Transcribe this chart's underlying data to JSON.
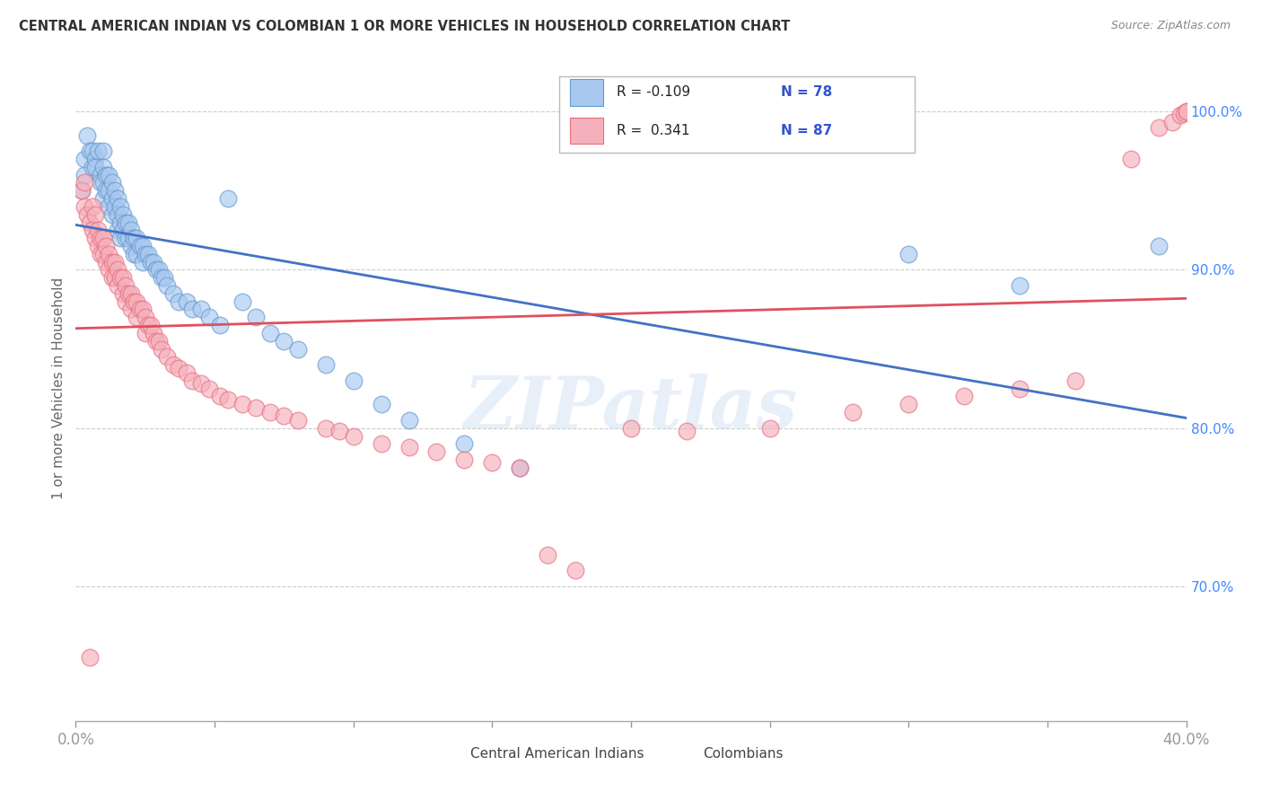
{
  "title": "CENTRAL AMERICAN INDIAN VS COLOMBIAN 1 OR MORE VEHICLES IN HOUSEHOLD CORRELATION CHART",
  "source": "Source: ZipAtlas.com",
  "ylabel": "1 or more Vehicles in Household",
  "ytick_labels": [
    "70.0%",
    "80.0%",
    "90.0%",
    "100.0%"
  ],
  "ytick_values": [
    0.7,
    0.8,
    0.9,
    1.0
  ],
  "xmin": 0.0,
  "xmax": 0.4,
  "ymin": 0.615,
  "ymax": 1.035,
  "watermark": "ZIPatlas",
  "legend_blue_label": "Central American Indians",
  "legend_pink_label": "Colombians",
  "blue_R": "-0.109",
  "blue_N": "78",
  "pink_R": "0.341",
  "pink_N": "87",
  "blue_fill": "#A8C8F0",
  "pink_fill": "#F5B0BB",
  "blue_edge": "#6699CC",
  "pink_edge": "#E87080",
  "blue_line": "#4472C4",
  "pink_line": "#E05060",
  "blue_x": [
    0.002,
    0.003,
    0.003,
    0.004,
    0.005,
    0.006,
    0.006,
    0.007,
    0.007,
    0.008,
    0.009,
    0.009,
    0.01,
    0.01,
    0.01,
    0.01,
    0.011,
    0.011,
    0.012,
    0.012,
    0.012,
    0.013,
    0.013,
    0.013,
    0.014,
    0.014,
    0.015,
    0.015,
    0.015,
    0.016,
    0.016,
    0.016,
    0.017,
    0.017,
    0.018,
    0.018,
    0.019,
    0.019,
    0.02,
    0.02,
    0.021,
    0.021,
    0.022,
    0.022,
    0.023,
    0.024,
    0.024,
    0.025,
    0.026,
    0.027,
    0.028,
    0.029,
    0.03,
    0.031,
    0.032,
    0.033,
    0.035,
    0.037,
    0.04,
    0.042,
    0.045,
    0.048,
    0.052,
    0.055,
    0.06,
    0.065,
    0.07,
    0.075,
    0.08,
    0.09,
    0.1,
    0.11,
    0.12,
    0.14,
    0.16,
    0.3,
    0.34,
    0.39
  ],
  "blue_y": [
    0.95,
    0.96,
    0.97,
    0.985,
    0.975,
    0.965,
    0.975,
    0.97,
    0.965,
    0.975,
    0.96,
    0.955,
    0.975,
    0.965,
    0.955,
    0.945,
    0.96,
    0.95,
    0.96,
    0.95,
    0.94,
    0.955,
    0.945,
    0.935,
    0.95,
    0.94,
    0.945,
    0.935,
    0.925,
    0.94,
    0.93,
    0.92,
    0.935,
    0.925,
    0.93,
    0.92,
    0.93,
    0.92,
    0.925,
    0.915,
    0.92,
    0.91,
    0.92,
    0.91,
    0.915,
    0.915,
    0.905,
    0.91,
    0.91,
    0.905,
    0.905,
    0.9,
    0.9,
    0.895,
    0.895,
    0.89,
    0.885,
    0.88,
    0.88,
    0.875,
    0.875,
    0.87,
    0.865,
    0.945,
    0.88,
    0.87,
    0.86,
    0.855,
    0.85,
    0.84,
    0.83,
    0.815,
    0.805,
    0.79,
    0.775,
    0.91,
    0.89,
    0.915
  ],
  "pink_x": [
    0.002,
    0.003,
    0.003,
    0.004,
    0.005,
    0.005,
    0.006,
    0.006,
    0.007,
    0.007,
    0.008,
    0.008,
    0.009,
    0.009,
    0.01,
    0.01,
    0.011,
    0.011,
    0.012,
    0.012,
    0.013,
    0.013,
    0.014,
    0.014,
    0.015,
    0.015,
    0.016,
    0.017,
    0.017,
    0.018,
    0.018,
    0.019,
    0.02,
    0.02,
    0.021,
    0.022,
    0.022,
    0.023,
    0.024,
    0.025,
    0.025,
    0.026,
    0.027,
    0.028,
    0.029,
    0.03,
    0.031,
    0.033,
    0.035,
    0.037,
    0.04,
    0.042,
    0.045,
    0.048,
    0.052,
    0.055,
    0.06,
    0.065,
    0.07,
    0.075,
    0.08,
    0.09,
    0.095,
    0.1,
    0.11,
    0.12,
    0.13,
    0.14,
    0.15,
    0.16,
    0.17,
    0.18,
    0.2,
    0.22,
    0.25,
    0.28,
    0.3,
    0.32,
    0.34,
    0.36,
    0.38,
    0.39,
    0.395,
    0.398,
    0.399,
    0.4,
    0.4
  ],
  "pink_y": [
    0.95,
    0.955,
    0.94,
    0.935,
    0.93,
    0.655,
    0.925,
    0.94,
    0.935,
    0.92,
    0.925,
    0.915,
    0.92,
    0.91,
    0.92,
    0.91,
    0.915,
    0.905,
    0.91,
    0.9,
    0.905,
    0.895,
    0.905,
    0.895,
    0.9,
    0.89,
    0.895,
    0.895,
    0.885,
    0.89,
    0.88,
    0.885,
    0.885,
    0.875,
    0.88,
    0.88,
    0.87,
    0.875,
    0.875,
    0.87,
    0.86,
    0.865,
    0.865,
    0.86,
    0.855,
    0.855,
    0.85,
    0.845,
    0.84,
    0.838,
    0.835,
    0.83,
    0.828,
    0.825,
    0.82,
    0.818,
    0.815,
    0.813,
    0.81,
    0.808,
    0.805,
    0.8,
    0.798,
    0.795,
    0.79,
    0.788,
    0.785,
    0.78,
    0.778,
    0.775,
    0.72,
    0.71,
    0.8,
    0.798,
    0.8,
    0.81,
    0.815,
    0.82,
    0.825,
    0.83,
    0.97,
    0.99,
    0.993,
    0.998,
    0.999,
    1.0,
    1.0
  ]
}
